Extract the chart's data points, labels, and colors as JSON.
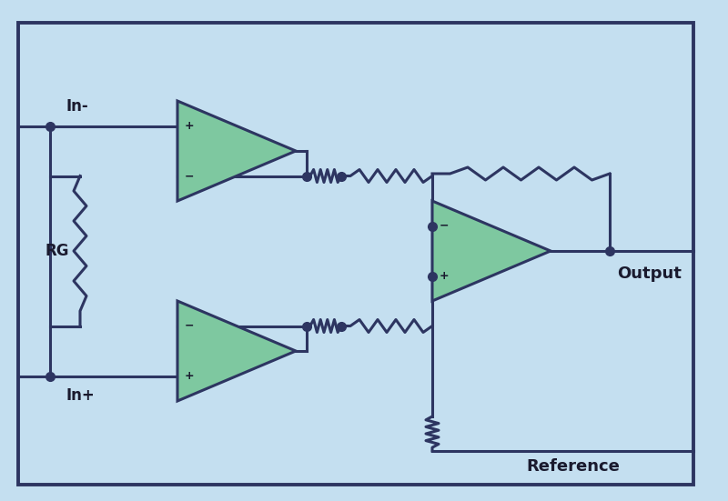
{
  "bg_color": "#c4dff0",
  "line_color": "#2d3561",
  "opamp_fill": "#7ec8a0",
  "opamp_edge": "#2d3561",
  "dot_color": "#2d3561",
  "text_color": "#1a1a2e",
  "labels": {
    "in_minus": "In-",
    "in_plus": "In+",
    "output": "Output",
    "reference": "Reference",
    "rg": "RG"
  },
  "line_width": 2.2,
  "dot_size": 7
}
